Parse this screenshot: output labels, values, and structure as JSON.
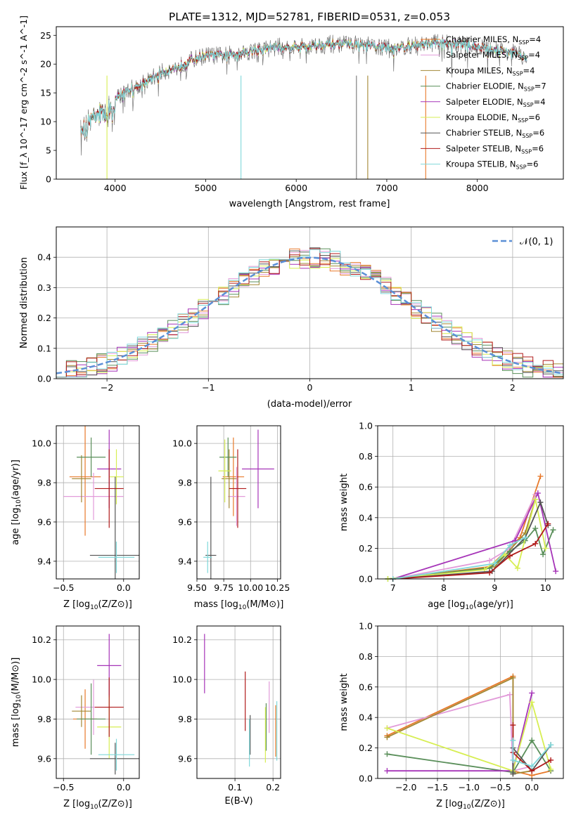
{
  "figure_title": "PLATE=1312, MJD=52781, FIBERID=0531, z=0.053",
  "colors": {
    "chabrier_miles": "#e8792a",
    "salpeter_miles": "#e29bd9",
    "kroupa_miles": "#a38734",
    "chabrier_elodie": "#5a8f5a",
    "salpeter_elodie": "#a634b8",
    "kroupa_elodie": "#d7ee53",
    "chabrier_stelib": "#555555",
    "salpeter_stelib": "#b01b1b",
    "kroupa_stelib": "#7fd8da",
    "gauss": "#5b8fd6",
    "grid": "#b0b0b0"
  },
  "chart_data": [
    {
      "type": "line",
      "id": "spectrum",
      "title": "PLATE=1312, MJD=52781, FIBERID=0531, z=0.053",
      "xlabel": "wavelength [Angstrom, rest frame]",
      "ylabel": "Flux [f_λ 10^-17 erg cm^-2 s^-1 A^-1]",
      "xlim": [
        3350,
        8950
      ],
      "ylim": [
        0,
        26.5
      ],
      "xticks": [
        "4000",
        "5000",
        "6000",
        "7000",
        "8000"
      ],
      "yticks": [
        "0",
        "5",
        "10",
        "15",
        "20",
        "25"
      ],
      "legend_position": "right",
      "continuum": [
        [
          3620,
          9.5
        ],
        [
          3700,
          11
        ],
        [
          3800,
          12.5
        ],
        [
          3900,
          13
        ],
        [
          4000,
          14
        ],
        [
          4100,
          15
        ],
        [
          4200,
          16
        ],
        [
          4300,
          16.5
        ],
        [
          4400,
          17.5
        ],
        [
          4500,
          18.5
        ],
        [
          4600,
          19
        ],
        [
          4700,
          19.5
        ],
        [
          4800,
          20.5
        ],
        [
          4900,
          21
        ],
        [
          5000,
          21.5
        ],
        [
          5200,
          21.5
        ],
        [
          5400,
          22
        ],
        [
          5600,
          22.5
        ],
        [
          5800,
          23
        ],
        [
          6000,
          23
        ],
        [
          6200,
          23.2
        ],
        [
          6400,
          23.5
        ],
        [
          6600,
          23.5
        ],
        [
          6800,
          23.2
        ],
        [
          7000,
          22.8
        ],
        [
          7200,
          23
        ],
        [
          7400,
          23.5
        ],
        [
          7600,
          23.8
        ],
        [
          7800,
          23.5
        ],
        [
          8000,
          23
        ],
        [
          8200,
          22.5
        ],
        [
          8400,
          22
        ],
        [
          8550,
          21
        ]
      ],
      "series": [
        {
          "name": "Chabrier MILES, N_SSP=4",
          "label": "Chabrier MILES, N",
          "sub": "SSP",
          "suffix": "=4",
          "color_key": "chabrier_miles"
        },
        {
          "name": "Salpeter MILES, N_SSP=4",
          "label": "Salpeter MILES, N",
          "sub": "SSP",
          "suffix": "=4",
          "color_key": "salpeter_miles"
        },
        {
          "name": "Kroupa MILES, N_SSP=4",
          "label": "Kroupa MILES, N",
          "sub": "SSP",
          "suffix": "=4",
          "color_key": "kroupa_miles"
        },
        {
          "name": "Chabrier ELODIE, N_SSP=7",
          "label": "Chabrier ELODIE, N",
          "sub": "SSP",
          "suffix": "=7",
          "color_key": "chabrier_elodie"
        },
        {
          "name": "Salpeter ELODIE, N_SSP=4",
          "label": "Salpeter ELODIE, N",
          "sub": "SSP",
          "suffix": "=4",
          "color_key": "salpeter_elodie"
        },
        {
          "name": "Kroupa ELODIE, N_SSP=6",
          "label": "Kroupa ELODIE, N",
          "sub": "SSP",
          "suffix": "=6",
          "color_key": "kroupa_elodie"
        },
        {
          "name": "Chabrier STELIB, N_SSP=6",
          "label": "Chabrier STELIB, N",
          "sub": "SSP",
          "suffix": "=6",
          "color_key": "chabrier_stelib"
        },
        {
          "name": "Salpeter STELIB, N_SSP=6",
          "label": "Salpeter STELIB, N",
          "sub": "SSP",
          "suffix": "=6",
          "color_key": "salpeter_stelib"
        },
        {
          "name": "Kroupa STELIB, N_SSP=6",
          "label": "Kroupa STELIB, N",
          "sub": "SSP",
          "suffix": "=6",
          "color_key": "kroupa_stelib"
        }
      ]
    },
    {
      "type": "line",
      "id": "residuals",
      "xlabel": "(data-model)/error",
      "ylabel": "Normed distribution",
      "xlim": [
        -2.5,
        2.5
      ],
      "ylim": [
        0,
        0.5
      ],
      "xticks": [
        "−2",
        "−1",
        "0",
        "1",
        "2"
      ],
      "yticks": [
        "0.0",
        "0.1",
        "0.2",
        "0.3",
        "0.4"
      ],
      "legend_position": "top-right",
      "gauss_label": "𝒩(0, 1)",
      "bin_width": 0.1
    },
    {
      "type": "scatter",
      "id": "age_vs_Z",
      "xlabel": "Z [log10(Z/Z⊙)]",
      "xlabel_main": "Z [log",
      "xlabel_sub": "10",
      "xlabel_tail": "(Z/Z⊙)]",
      "ylabel": "age [log10(age/yr)]",
      "ylabel_main": "age  [log",
      "ylabel_sub": "10",
      "ylabel_tail": "(age/yr)]",
      "xlim": [
        -0.56,
        0.13
      ],
      "ylim": [
        9.31,
        10.09
      ],
      "xticks": [
        "−0.5",
        "0.0"
      ],
      "yticks": [
        "9.4",
        "9.6",
        "9.8",
        "10.0"
      ],
      "points": [
        {
          "key": "chabrier_miles",
          "x": -0.32,
          "y": 9.83,
          "xerr": 0.13,
          "yerr": 0.3
        },
        {
          "key": "salpeter_miles",
          "x": -0.25,
          "y": 9.73,
          "xerr": 0.25,
          "yerr": 0.12
        },
        {
          "key": "kroupa_miles",
          "x": -0.35,
          "y": 9.82,
          "xerr": 0.08,
          "yerr": 0.12
        },
        {
          "key": "chabrier_elodie",
          "x": -0.27,
          "y": 9.93,
          "xerr": 0.12,
          "yerr": 0.1
        },
        {
          "key": "salpeter_elodie",
          "x": -0.12,
          "y": 9.87,
          "xerr": 0.1,
          "yerr": 0.2
        },
        {
          "key": "kroupa_elodie",
          "x": -0.06,
          "y": 9.83,
          "xerr": 0.06,
          "yerr": 0.14
        },
        {
          "key": "chabrier_stelib",
          "x": -0.07,
          "y": 9.43,
          "xerr": 0.21,
          "yerr": 0.4
        },
        {
          "key": "salpeter_stelib",
          "x": -0.12,
          "y": 9.77,
          "xerr": 0.12,
          "yerr": 0.2
        },
        {
          "key": "kroupa_stelib",
          "x": -0.06,
          "y": 9.42,
          "xerr": 0.15,
          "yerr": 0.08
        }
      ]
    },
    {
      "type": "scatter",
      "id": "age_vs_mass",
      "xlabel": "mass [log10(M/M⊙)]",
      "xlabel_main": "mass [log",
      "xlabel_sub": "10",
      "xlabel_tail": "(M/M⊙)]",
      "xlim": [
        9.5,
        10.28
      ],
      "ylim": [
        9.31,
        10.09
      ],
      "xticks": [
        "9.50",
        "9.75",
        "10.00",
        "10.25"
      ],
      "yticks": [
        "9.4",
        "9.6",
        "9.8",
        "10.0"
      ],
      "points": [
        {
          "key": "chabrier_miles",
          "x": 9.84,
          "y": 9.83,
          "xerr": 0.1,
          "yerr": 0.2
        },
        {
          "key": "salpeter_miles",
          "x": 9.87,
          "y": 9.73,
          "xerr": 0.08,
          "yerr": 0.15
        },
        {
          "key": "kroupa_miles",
          "x": 9.8,
          "y": 9.82,
          "xerr": 0.07,
          "yerr": 0.15
        },
        {
          "key": "chabrier_elodie",
          "x": 9.79,
          "y": 9.93,
          "xerr": 0.08,
          "yerr": 0.1
        },
        {
          "key": "salpeter_elodie",
          "x": 10.07,
          "y": 9.87,
          "xerr": 0.15,
          "yerr": 0.2
        },
        {
          "key": "kroupa_elodie",
          "x": 9.76,
          "y": 9.86,
          "xerr": 0.06,
          "yerr": 0.16
        },
        {
          "key": "chabrier_stelib",
          "x": 9.63,
          "y": 9.43,
          "xerr": 0.05,
          "yerr": 0.4
        },
        {
          "key": "salpeter_stelib",
          "x": 9.88,
          "y": 9.77,
          "xerr": 0.08,
          "yerr": 0.2
        },
        {
          "key": "kroupa_stelib",
          "x": 9.6,
          "y": 9.42,
          "xerr": 0.04,
          "yerr": 0.08
        }
      ]
    },
    {
      "type": "line",
      "id": "weight_vs_age",
      "xlabel": "age [log10(age/yr)]",
      "xlabel_main": "age  [log",
      "xlabel_sub": "10",
      "xlabel_tail": "(age/yr)]",
      "ylabel": "mass weight",
      "xlim": [
        6.7,
        10.35
      ],
      "ylim": [
        0,
        1.0
      ],
      "xticks": [
        "7",
        "8",
        "9",
        "10"
      ],
      "yticks": [
        "0.0",
        "0.2",
        "0.4",
        "0.6",
        "0.8",
        "1.0"
      ],
      "series": [
        {
          "key": "chabrier_miles",
          "x": [
            7.0,
            8.9,
            9.5,
            9.9
          ],
          "y": [
            0.0,
            0.08,
            0.27,
            0.67
          ]
        },
        {
          "key": "salpeter_miles",
          "x": [
            7.0,
            8.9,
            9.3,
            9.8
          ],
          "y": [
            0.0,
            0.12,
            0.2,
            0.55
          ]
        },
        {
          "key": "kroupa_miles",
          "x": [
            7.0,
            9.0,
            9.6,
            9.8
          ],
          "y": [
            0.0,
            0.08,
            0.3,
            0.52
          ]
        },
        {
          "key": "chabrier_elodie",
          "x": [
            6.9,
            8.9,
            9.3,
            9.6,
            9.8,
            9.95,
            10.15
          ],
          "y": [
            0.0,
            0.07,
            0.18,
            0.25,
            0.33,
            0.16,
            0.32
          ]
        },
        {
          "key": "salpeter_elodie",
          "x": [
            7.0,
            9.4,
            9.85,
            10.2
          ],
          "y": [
            0.0,
            0.25,
            0.56,
            0.05
          ]
        },
        {
          "key": "kroupa_elodie",
          "x": [
            6.9,
            8.8,
            9.2,
            9.45,
            9.8,
            10.0
          ],
          "y": [
            0.0,
            0.06,
            0.16,
            0.07,
            0.52,
            0.2
          ]
        },
        {
          "key": "chabrier_stelib",
          "x": [
            7.0,
            8.95,
            9.6,
            9.9,
            10.05
          ],
          "y": [
            0.0,
            0.05,
            0.27,
            0.5,
            0.35
          ]
        },
        {
          "key": "salpeter_stelib",
          "x": [
            7.0,
            8.9,
            9.3,
            9.8,
            10.05
          ],
          "y": [
            0.0,
            0.04,
            0.15,
            0.23,
            0.36
          ]
        },
        {
          "key": "kroupa_stelib",
          "x": [
            7.0,
            9.0,
            9.3,
            9.6
          ],
          "y": [
            0.0,
            0.1,
            0.22,
            0.27
          ]
        }
      ]
    },
    {
      "type": "scatter",
      "id": "mass_vs_Z",
      "xlabel": "Z [log10(Z/Z⊙)]",
      "xlabel_main": "Z [log",
      "xlabel_sub": "10",
      "xlabel_tail": "(Z/Z⊙)]",
      "ylabel": "mass [log10(M/M⊙)]",
      "ylabel_main": "mass [log",
      "ylabel_sub": "10",
      "ylabel_tail": "(M/M⊙)]",
      "xlim": [
        -0.56,
        0.13
      ],
      "ylim": [
        9.5,
        10.27
      ],
      "xticks": [
        "−0.5",
        "0.0"
      ],
      "yticks": [
        "9.6",
        "9.8",
        "10.0",
        "10.2"
      ],
      "points": [
        {
          "key": "chabrier_miles",
          "x": -0.32,
          "y": 9.8,
          "xerr": 0.1,
          "yerr": 0.15
        },
        {
          "key": "salpeter_miles",
          "x": -0.25,
          "y": 9.86,
          "xerr": 0.15,
          "yerr": 0.14
        },
        {
          "key": "kroupa_miles",
          "x": -0.35,
          "y": 9.84,
          "xerr": 0.08,
          "yerr": 0.08
        },
        {
          "key": "chabrier_elodie",
          "x": -0.27,
          "y": 9.8,
          "xerr": 0.12,
          "yerr": 0.18
        },
        {
          "key": "salpeter_elodie",
          "x": -0.12,
          "y": 10.07,
          "xerr": 0.1,
          "yerr": 0.16
        },
        {
          "key": "kroupa_elodie",
          "x": -0.12,
          "y": 9.76,
          "xerr": 0.1,
          "yerr": 0.16
        },
        {
          "key": "chabrier_stelib",
          "x": -0.07,
          "y": 9.6,
          "xerr": 0.21,
          "yerr": 0.08
        },
        {
          "key": "salpeter_stelib",
          "x": -0.12,
          "y": 9.86,
          "xerr": 0.12,
          "yerr": 0.15
        },
        {
          "key": "kroupa_stelib",
          "x": -0.06,
          "y": 9.62,
          "xerr": 0.15,
          "yerr": 0.08
        }
      ]
    },
    {
      "type": "scatter",
      "id": "mass_vs_ebv",
      "xlabel": "E(B-V)",
      "xlim": [
        0.0,
        0.22
      ],
      "ylim": [
        9.5,
        10.27
      ],
      "xticks": [
        "0.1",
        "0.2"
      ],
      "yticks": [
        "9.6",
        "9.8",
        "10.0",
        "10.2"
      ],
      "points": [
        {
          "key": "salpeter_elodie",
          "x": 0.02,
          "y": 10.08,
          "xerr": 0,
          "yerr": 0.15
        },
        {
          "key": "salpeter_stelib",
          "x": 0.127,
          "y": 9.89,
          "xerr": 0,
          "yerr": 0.15
        },
        {
          "key": "chabrier_stelib",
          "x": 0.14,
          "y": 9.72,
          "xerr": 0,
          "yerr": 0.1
        },
        {
          "key": "kroupa_stelib",
          "x": 0.138,
          "y": 9.68,
          "xerr": 0,
          "yerr": 0.12
        },
        {
          "key": "chabrier_elodie",
          "x": 0.182,
          "y": 9.76,
          "xerr": 0,
          "yerr": 0.12
        },
        {
          "key": "kroupa_elodie",
          "x": 0.18,
          "y": 9.72,
          "xerr": 0,
          "yerr": 0.14
        },
        {
          "key": "salpeter_miles",
          "x": 0.19,
          "y": 9.86,
          "xerr": 0,
          "yerr": 0.13
        },
        {
          "key": "chabrier_miles",
          "x": 0.207,
          "y": 9.74,
          "xerr": 0,
          "yerr": 0.13
        },
        {
          "key": "kroupa_stelib",
          "x": 0.21,
          "y": 9.74,
          "xerr": 0,
          "yerr": 0.15
        }
      ]
    },
    {
      "type": "line",
      "id": "weight_vs_Z",
      "xlabel": "Z [log10(Z/Z⊙)]",
      "xlabel_main": "Z [log",
      "xlabel_sub": "10",
      "xlabel_tail": "(Z/Z⊙)]",
      "ylabel": "mass weight",
      "xlim": [
        -2.45,
        0.5
      ],
      "ylim": [
        0,
        1.0
      ],
      "xticks": [
        "−2.0",
        "−1.5",
        "−1.0",
        "−0.5",
        "0.0"
      ],
      "yticks": [
        "0.0",
        "0.2",
        "0.4",
        "0.6",
        "0.8",
        "1.0"
      ],
      "series": [
        {
          "key": "chabrier_miles",
          "x": [
            -2.3,
            -0.3,
            -0.3,
            0.0,
            0.3
          ],
          "y": [
            0.28,
            0.67,
            0.05,
            0.02,
            0.05
          ]
        },
        {
          "key": "salpeter_miles",
          "x": [
            -2.3,
            -0.35,
            -0.3,
            0.0
          ],
          "y": [
            0.33,
            0.55,
            0.05,
            0.08
          ]
        },
        {
          "key": "kroupa_miles",
          "x": [
            -2.3,
            -0.3,
            -0.3,
            0.0
          ],
          "y": [
            0.27,
            0.66,
            0.03,
            0.05
          ]
        },
        {
          "key": "chabrier_elodie",
          "x": [
            -2.3,
            -0.3,
            0.0,
            0.3
          ],
          "y": [
            0.16,
            0.04,
            0.25,
            0.05
          ]
        },
        {
          "key": "salpeter_elodie",
          "x": [
            -2.3,
            -0.3,
            0.0
          ],
          "y": [
            0.05,
            0.05,
            0.56
          ]
        },
        {
          "key": "kroupa_elodie",
          "x": [
            -2.3,
            -0.3,
            0.0,
            0.3
          ],
          "y": [
            0.33,
            0.05,
            0.5,
            0.06
          ]
        },
        {
          "key": "chabrier_stelib",
          "x": [
            -0.3,
            -0.3,
            0.0,
            0.3
          ],
          "y": [
            0.03,
            0.2,
            0.05,
            0.22
          ]
        },
        {
          "key": "salpeter_stelib",
          "x": [
            -0.3,
            -0.3,
            0.0,
            0.3
          ],
          "y": [
            0.35,
            0.17,
            0.05,
            0.12
          ]
        },
        {
          "key": "kroupa_stelib",
          "x": [
            -0.3,
            -0.3,
            0.0,
            0.3
          ],
          "y": [
            0.25,
            0.12,
            0.08,
            0.22
          ]
        }
      ]
    }
  ]
}
